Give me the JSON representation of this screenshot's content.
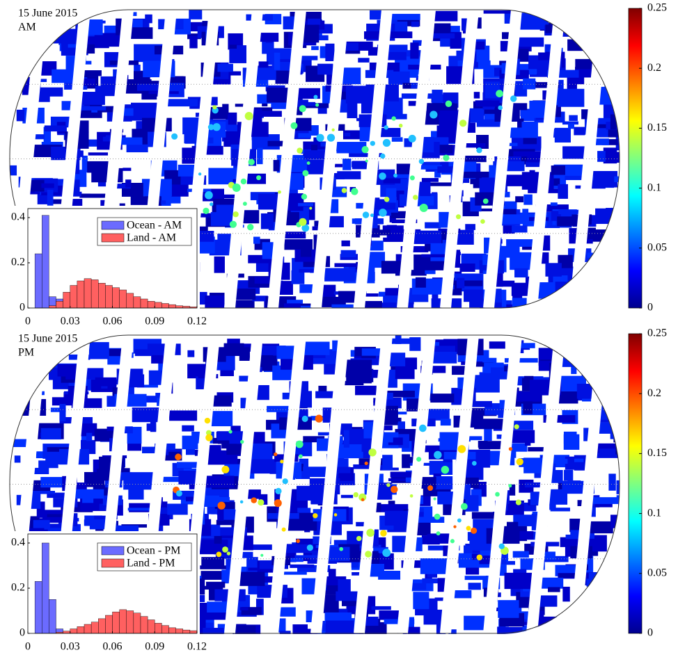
{
  "maps": [
    {
      "title": [
        "15 June 2015",
        "AM"
      ],
      "colorbar": {
        "colormap": "jet",
        "lim": [
          0,
          0.25
        ],
        "ticks": [
          0,
          0.05,
          0.1,
          0.15,
          0.2,
          0.25
        ]
      }
    },
    {
      "title": [
        "15 June 2015",
        "PM"
      ],
      "colorbar": {
        "colormap": "jet",
        "lim": [
          0,
          0.25
        ],
        "ticks": [
          0,
          0.05,
          0.1,
          0.15,
          0.2,
          0.25
        ]
      }
    }
  ],
  "chart_data": [
    {
      "type": "histogram",
      "bins": [
        0.005,
        0.01,
        0.015,
        0.02,
        0.025,
        0.03,
        0.035,
        0.04,
        0.045,
        0.05,
        0.055,
        0.06,
        0.065,
        0.07,
        0.075,
        0.08,
        0.085,
        0.09,
        0.095,
        0.1,
        0.105,
        0.11,
        0.115,
        0.12
      ],
      "series": [
        {
          "name": "Ocean - AM",
          "color": "#6b6bff",
          "values": [
            0.24,
            0.41,
            0.05,
            0.04,
            0.01,
            0,
            0,
            0,
            0,
            0,
            0,
            0,
            0,
            0,
            0,
            0,
            0,
            0,
            0,
            0,
            0,
            0,
            0
          ]
        },
        {
          "name": "Land - AM",
          "color": "#ff6060",
          "values": [
            0,
            0,
            0.01,
            0.03,
            0.07,
            0.1,
            0.12,
            0.13,
            0.125,
            0.11,
            0.1,
            0.09,
            0.08,
            0.065,
            0.05,
            0.04,
            0.03,
            0.025,
            0.02,
            0.015,
            0.01,
            0.008,
            0.005
          ]
        }
      ],
      "xlim": [
        0,
        0.12
      ],
      "xticks": [
        0,
        0.03,
        0.06,
        0.09,
        0.12
      ],
      "ylim": [
        0,
        0.44
      ],
      "yticks": [
        0,
        0.2,
        0.4
      ],
      "legend": "upper right"
    },
    {
      "type": "histogram",
      "bins": [
        0.005,
        0.01,
        0.015,
        0.02,
        0.025,
        0.03,
        0.035,
        0.04,
        0.045,
        0.05,
        0.055,
        0.06,
        0.065,
        0.07,
        0.075,
        0.08,
        0.085,
        0.09,
        0.095,
        0.1,
        0.105,
        0.11,
        0.115,
        0.12
      ],
      "series": [
        {
          "name": "Ocean - PM",
          "color": "#6b6bff",
          "values": [
            0.23,
            0.4,
            0.15,
            0.02,
            0,
            0,
            0,
            0,
            0,
            0,
            0,
            0,
            0,
            0,
            0,
            0,
            0,
            0,
            0,
            0,
            0,
            0,
            0
          ]
        },
        {
          "name": "Land - PM",
          "color": "#ff6060",
          "values": [
            0,
            0,
            0,
            0.005,
            0.01,
            0.02,
            0.03,
            0.04,
            0.05,
            0.065,
            0.08,
            0.095,
            0.105,
            0.1,
            0.09,
            0.075,
            0.06,
            0.045,
            0.035,
            0.025,
            0.02,
            0.015,
            0.012
          ]
        }
      ],
      "xlim": [
        0,
        0.12
      ],
      "xticks": [
        0,
        0.03,
        0.06,
        0.09,
        0.12
      ],
      "ylim": [
        0,
        0.44
      ],
      "yticks": [
        0,
        0.2,
        0.4
      ],
      "legend": "upper right"
    }
  ]
}
